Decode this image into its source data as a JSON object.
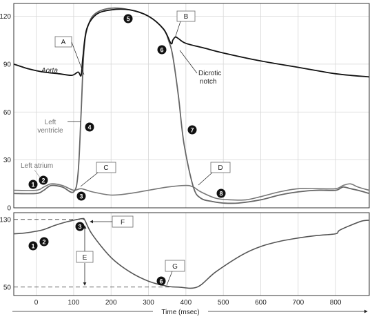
{
  "xaxis": {
    "label": "Time (msec)",
    "ticks": [
      "0",
      "100",
      "200",
      "300",
      "400",
      "500",
      "600",
      "700",
      "800"
    ]
  },
  "chart_data": [
    {
      "type": "line",
      "title": "",
      "xlim": [
        -60,
        890
      ],
      "ylim": [
        0,
        128
      ],
      "yticks": [
        "0",
        "30",
        "60",
        "90",
        "120"
      ],
      "grid": true,
      "series": [
        {
          "name": "Aorta",
          "x": [
            -60,
            -20,
            20,
            60,
            95,
            112,
            120,
            125,
            135,
            160,
            200,
            250,
            300,
            340,
            360,
            365,
            372,
            380,
            400,
            450,
            500,
            600,
            700,
            800,
            890
          ],
          "y": [
            90,
            87,
            85,
            84,
            83,
            85,
            83,
            95,
            112,
            121,
            124,
            124,
            120,
            112,
            103,
            105,
            107,
            106,
            103,
            100,
            97,
            92,
            88,
            84,
            82
          ]
        },
        {
          "name": "Left ventricle",
          "x": [
            -60,
            0,
            20,
            40,
            70,
            100,
            112,
            120,
            128,
            140,
            160,
            200,
            250,
            300,
            340,
            355,
            365,
            380,
            395,
            420,
            440,
            470,
            500,
            540,
            600,
            650,
            700,
            750,
            800,
            820,
            840,
            860,
            890
          ],
          "y": [
            9,
            9,
            11,
            14,
            13,
            10,
            22,
            60,
            100,
            115,
            122,
            125,
            124,
            120,
            112,
            104,
            95,
            70,
            40,
            13,
            6,
            4,
            3,
            3,
            5,
            8,
            10,
            11,
            11,
            13,
            12,
            11,
            9
          ]
        },
        {
          "name": "Left atrium",
          "x": [
            -60,
            0,
            20,
            40,
            70,
            100,
            120,
            150,
            200,
            250,
            300,
            350,
            400,
            420,
            440,
            480,
            520,
            560,
            600,
            650,
            700,
            750,
            800,
            820,
            840,
            860,
            890
          ],
          "y": [
            11,
            11,
            13,
            15,
            14,
            11,
            12,
            10,
            8,
            9,
            11,
            13,
            14,
            13,
            10,
            6,
            5,
            5,
            7,
            10,
            12,
            12,
            12,
            14,
            15,
            13,
            11
          ]
        }
      ],
      "annotations": [
        "A",
        "B",
        "C",
        "D",
        "Dicrotic notch"
      ],
      "markers": [
        "1",
        "2",
        "3",
        "4",
        "5",
        "6",
        "7",
        "8"
      ]
    },
    {
      "type": "line",
      "title": "",
      "xlim": [
        -60,
        890
      ],
      "ylim": [
        40,
        138
      ],
      "yticks": [
        "50",
        "130"
      ],
      "grid": true,
      "series": [
        {
          "name": "",
          "x": [
            -60,
            -30,
            0,
            20,
            50,
            80,
            110,
            125,
            130,
            150,
            200,
            250,
            300,
            350,
            380,
            430,
            480,
            550,
            600,
            650,
            700,
            750,
            800,
            810,
            840,
            870,
            890
          ],
          "y": [
            113,
            114,
            116,
            118,
            123,
            127,
            130,
            131,
            129,
            112,
            85,
            68,
            57,
            51,
            50,
            50,
            68,
            88,
            98,
            104,
            108,
            111,
            113,
            117,
            123,
            128,
            129
          ]
        }
      ],
      "reference_lines": [
        130,
        50
      ],
      "annotations": [
        "E",
        "F",
        "G"
      ],
      "markers": [
        "1",
        "2",
        "3",
        "6"
      ]
    }
  ]
}
